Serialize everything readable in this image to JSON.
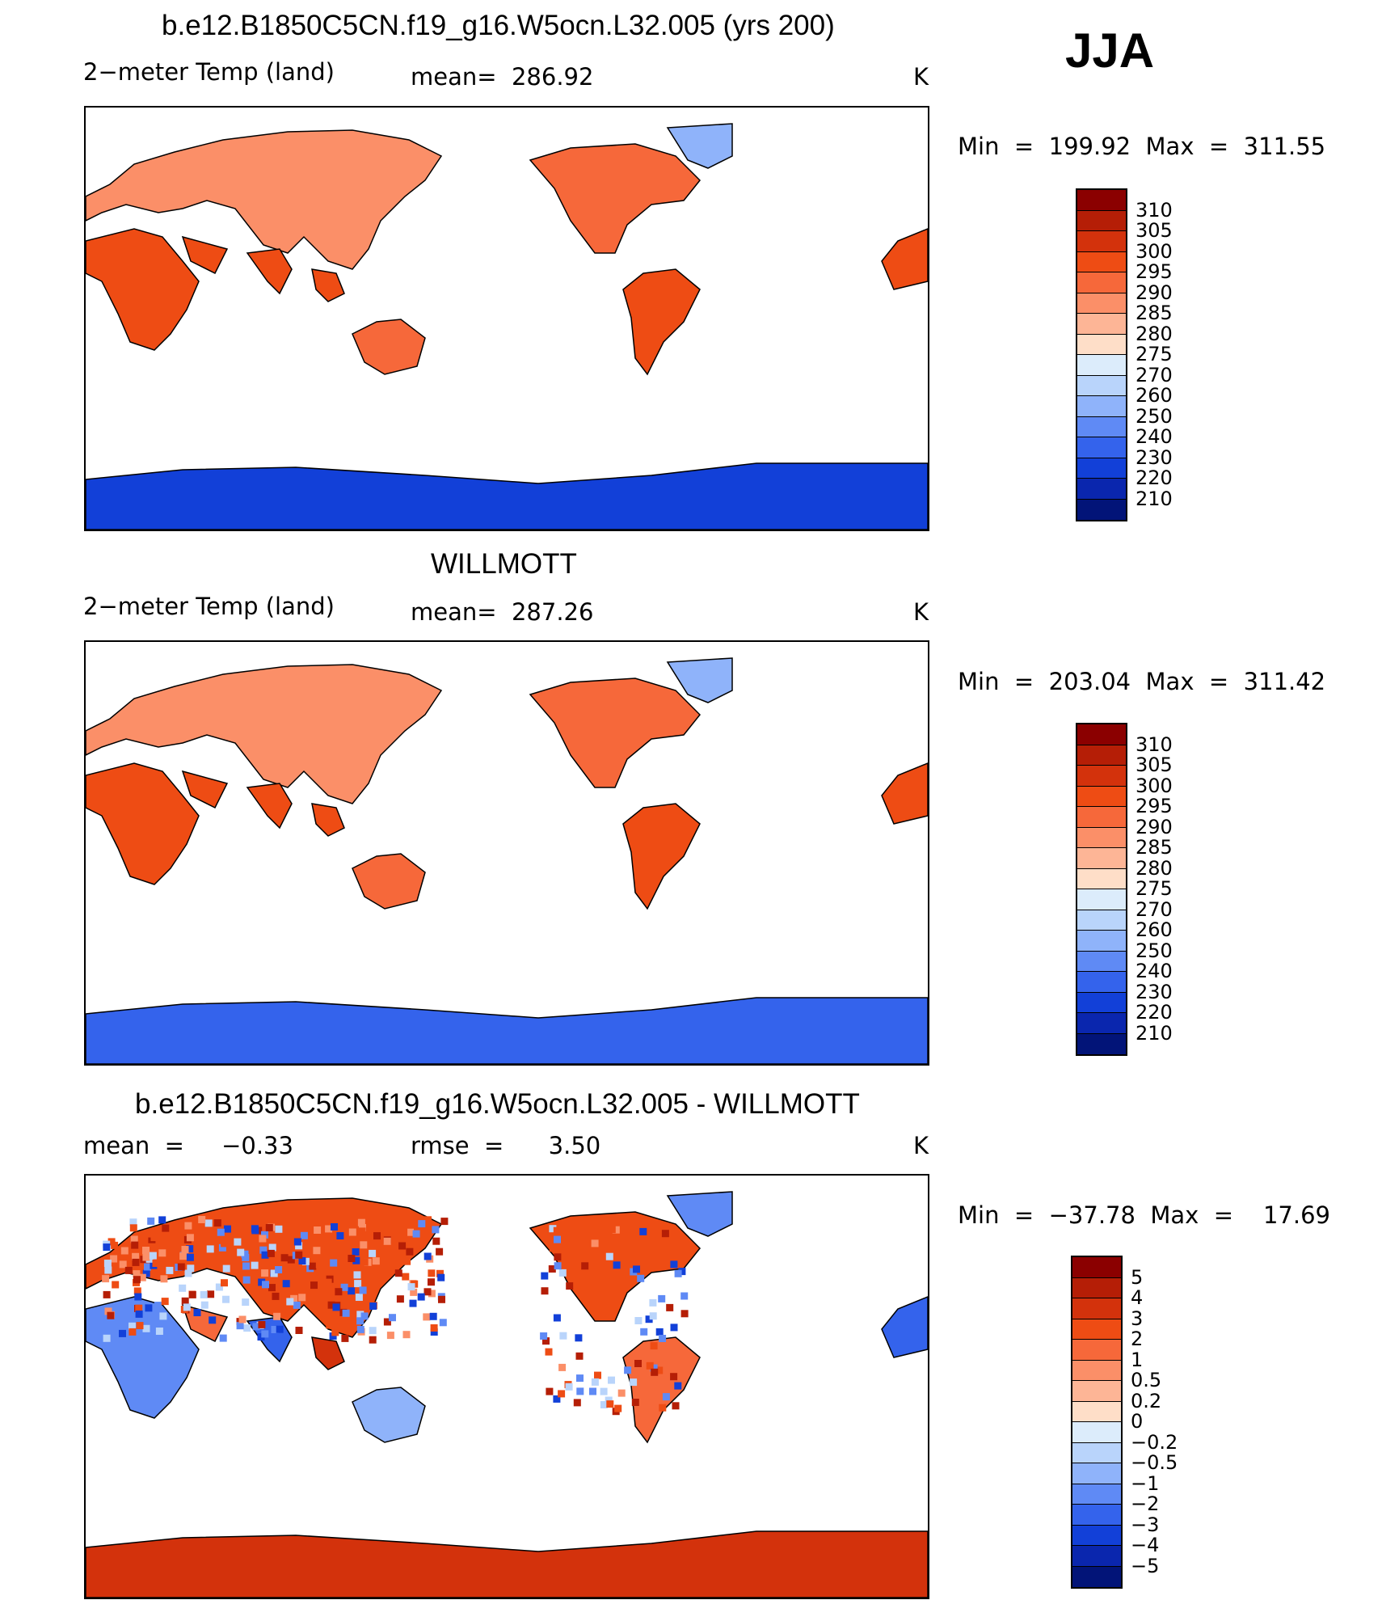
{
  "season": "JJA",
  "panels": [
    {
      "id": "model",
      "title": "b.e12.B1850C5CN.f19_g16.W5ocn.L32.005 (yrs 200)",
      "variable": "2−meter Temp (land)",
      "stat_text": "mean=  286.92",
      "units": "K",
      "minmax": "Min  =  199.92  Max  =  311.55",
      "levels": [
        "310",
        "305",
        "300",
        "295",
        "290",
        "285",
        "280",
        "275",
        "270",
        "260",
        "250",
        "240",
        "230",
        "220",
        "210"
      ],
      "colors": [
        "#8b0000",
        "#b51e06",
        "#d3320c",
        "#ee4c14",
        "#f6683a",
        "#fb8f68",
        "#fdb596",
        "#fedec8",
        "#dcecfb",
        "#b9d4fb",
        "#8fb3fa",
        "#5f8af5",
        "#3463ec",
        "#1240d8",
        "#0a26ae",
        "#021478"
      ]
    },
    {
      "id": "obs",
      "title": "WILLMOTT",
      "variable": "2−meter Temp (land)",
      "stat_text": "mean=  287.26",
      "units": "K",
      "minmax": "Min  =  203.04  Max  =  311.42",
      "levels": [
        "310",
        "305",
        "300",
        "295",
        "290",
        "285",
        "280",
        "275",
        "270",
        "260",
        "250",
        "240",
        "230",
        "220",
        "210"
      ],
      "colors": [
        "#8b0000",
        "#b51e06",
        "#d3320c",
        "#ee4c14",
        "#f6683a",
        "#fb8f68",
        "#fdb596",
        "#fedec8",
        "#dcecfb",
        "#b9d4fb",
        "#8fb3fa",
        "#5f8af5",
        "#3463ec",
        "#1240d8",
        "#0a26ae",
        "#021478"
      ]
    },
    {
      "id": "diff",
      "title": "b.e12.B1850C5CN.f19_g16.W5ocn.L32.005 - WILLMOTT",
      "variable": "mean  =     −0.33",
      "stat_text": "rmse  =      3.50",
      "units": "K",
      "minmax": "Min  =  −37.78  Max  =    17.69",
      "levels": [
        "5",
        "4",
        "3",
        "2",
        "1",
        "0.5",
        "0.2",
        "0",
        "−0.2",
        "−0.5",
        "−1",
        "−2",
        "−3",
        "−4",
        "−5"
      ],
      "colors": [
        "#8b0000",
        "#b51e06",
        "#d3320c",
        "#ee4c14",
        "#f6683a",
        "#fb8f68",
        "#fdb596",
        "#fedec8",
        "#dcecfb",
        "#b9d4fb",
        "#8fb3fa",
        "#5f8af5",
        "#3463ec",
        "#1240d8",
        "#0a26ae",
        "#021478"
      ]
    }
  ],
  "chart_data": [
    {
      "type": "heatmap",
      "title": "b.e12.B1850C5CN.f19_g16.W5ocn.L32.005 (yrs 200)",
      "subtitle": "2−meter Temp (land)",
      "units": "K",
      "mean": 286.92,
      "min": 199.92,
      "max": 311.55,
      "colorbar_levels": [
        310,
        305,
        300,
        295,
        290,
        285,
        280,
        275,
        270,
        260,
        250,
        240,
        230,
        220,
        210
      ],
      "legend_position": "right"
    },
    {
      "type": "heatmap",
      "title": "WILLMOTT",
      "subtitle": "2−meter Temp (land)",
      "units": "K",
      "mean": 287.26,
      "min": 203.04,
      "max": 311.42,
      "colorbar_levels": [
        310,
        305,
        300,
        295,
        290,
        285,
        280,
        275,
        270,
        260,
        250,
        240,
        230,
        220,
        210
      ],
      "legend_position": "right"
    },
    {
      "type": "heatmap",
      "title": "b.e12.B1850C5CN.f19_g16.W5ocn.L32.005 - WILLMOTT",
      "units": "K",
      "mean": -0.33,
      "rmse": 3.5,
      "min": -37.78,
      "max": 17.69,
      "colorbar_levels": [
        5,
        4,
        3,
        2,
        1,
        0.5,
        0.2,
        0,
        -0.2,
        -0.5,
        -1,
        -2,
        -3,
        -4,
        -5
      ],
      "legend_position": "right"
    }
  ]
}
